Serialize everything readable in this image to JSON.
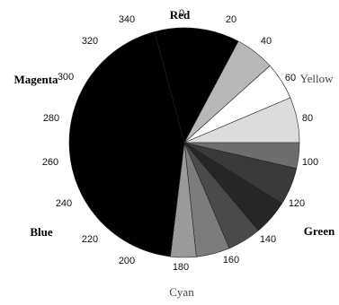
{
  "chart_data": {
    "type": "pie",
    "title": "",
    "degree_labels": [
      "0",
      "20",
      "40",
      "60",
      "80",
      "100",
      "120",
      "140",
      "160",
      "180",
      "200",
      "220",
      "240",
      "260",
      "280",
      "300",
      "320",
      "340"
    ],
    "color_labels": [
      "Red",
      "Yellow",
      "Green",
      "Cyan",
      "Blue",
      "Magenta"
    ],
    "slices": [
      {
        "start": 345,
        "end": 28,
        "fill": "#000000"
      },
      {
        "start": 28,
        "end": 48,
        "fill": "#b8b8b8"
      },
      {
        "start": 48,
        "end": 67,
        "fill": "#ffffff"
      },
      {
        "start": 67,
        "end": 90,
        "fill": "#dcdcdc"
      },
      {
        "start": 90,
        "end": 103,
        "fill": "#6e6e6e"
      },
      {
        "start": 103,
        "end": 122,
        "fill": "#3a3a3a"
      },
      {
        "start": 122,
        "end": 140,
        "fill": "#262626"
      },
      {
        "start": 140,
        "end": 157,
        "fill": "#4a4a4a"
      },
      {
        "start": 157,
        "end": 174,
        "fill": "#7c7c7c"
      },
      {
        "start": 174,
        "end": 187,
        "fill": "#9a9a9a"
      },
      {
        "start": 187,
        "end": 345,
        "fill": "#000000"
      }
    ]
  }
}
